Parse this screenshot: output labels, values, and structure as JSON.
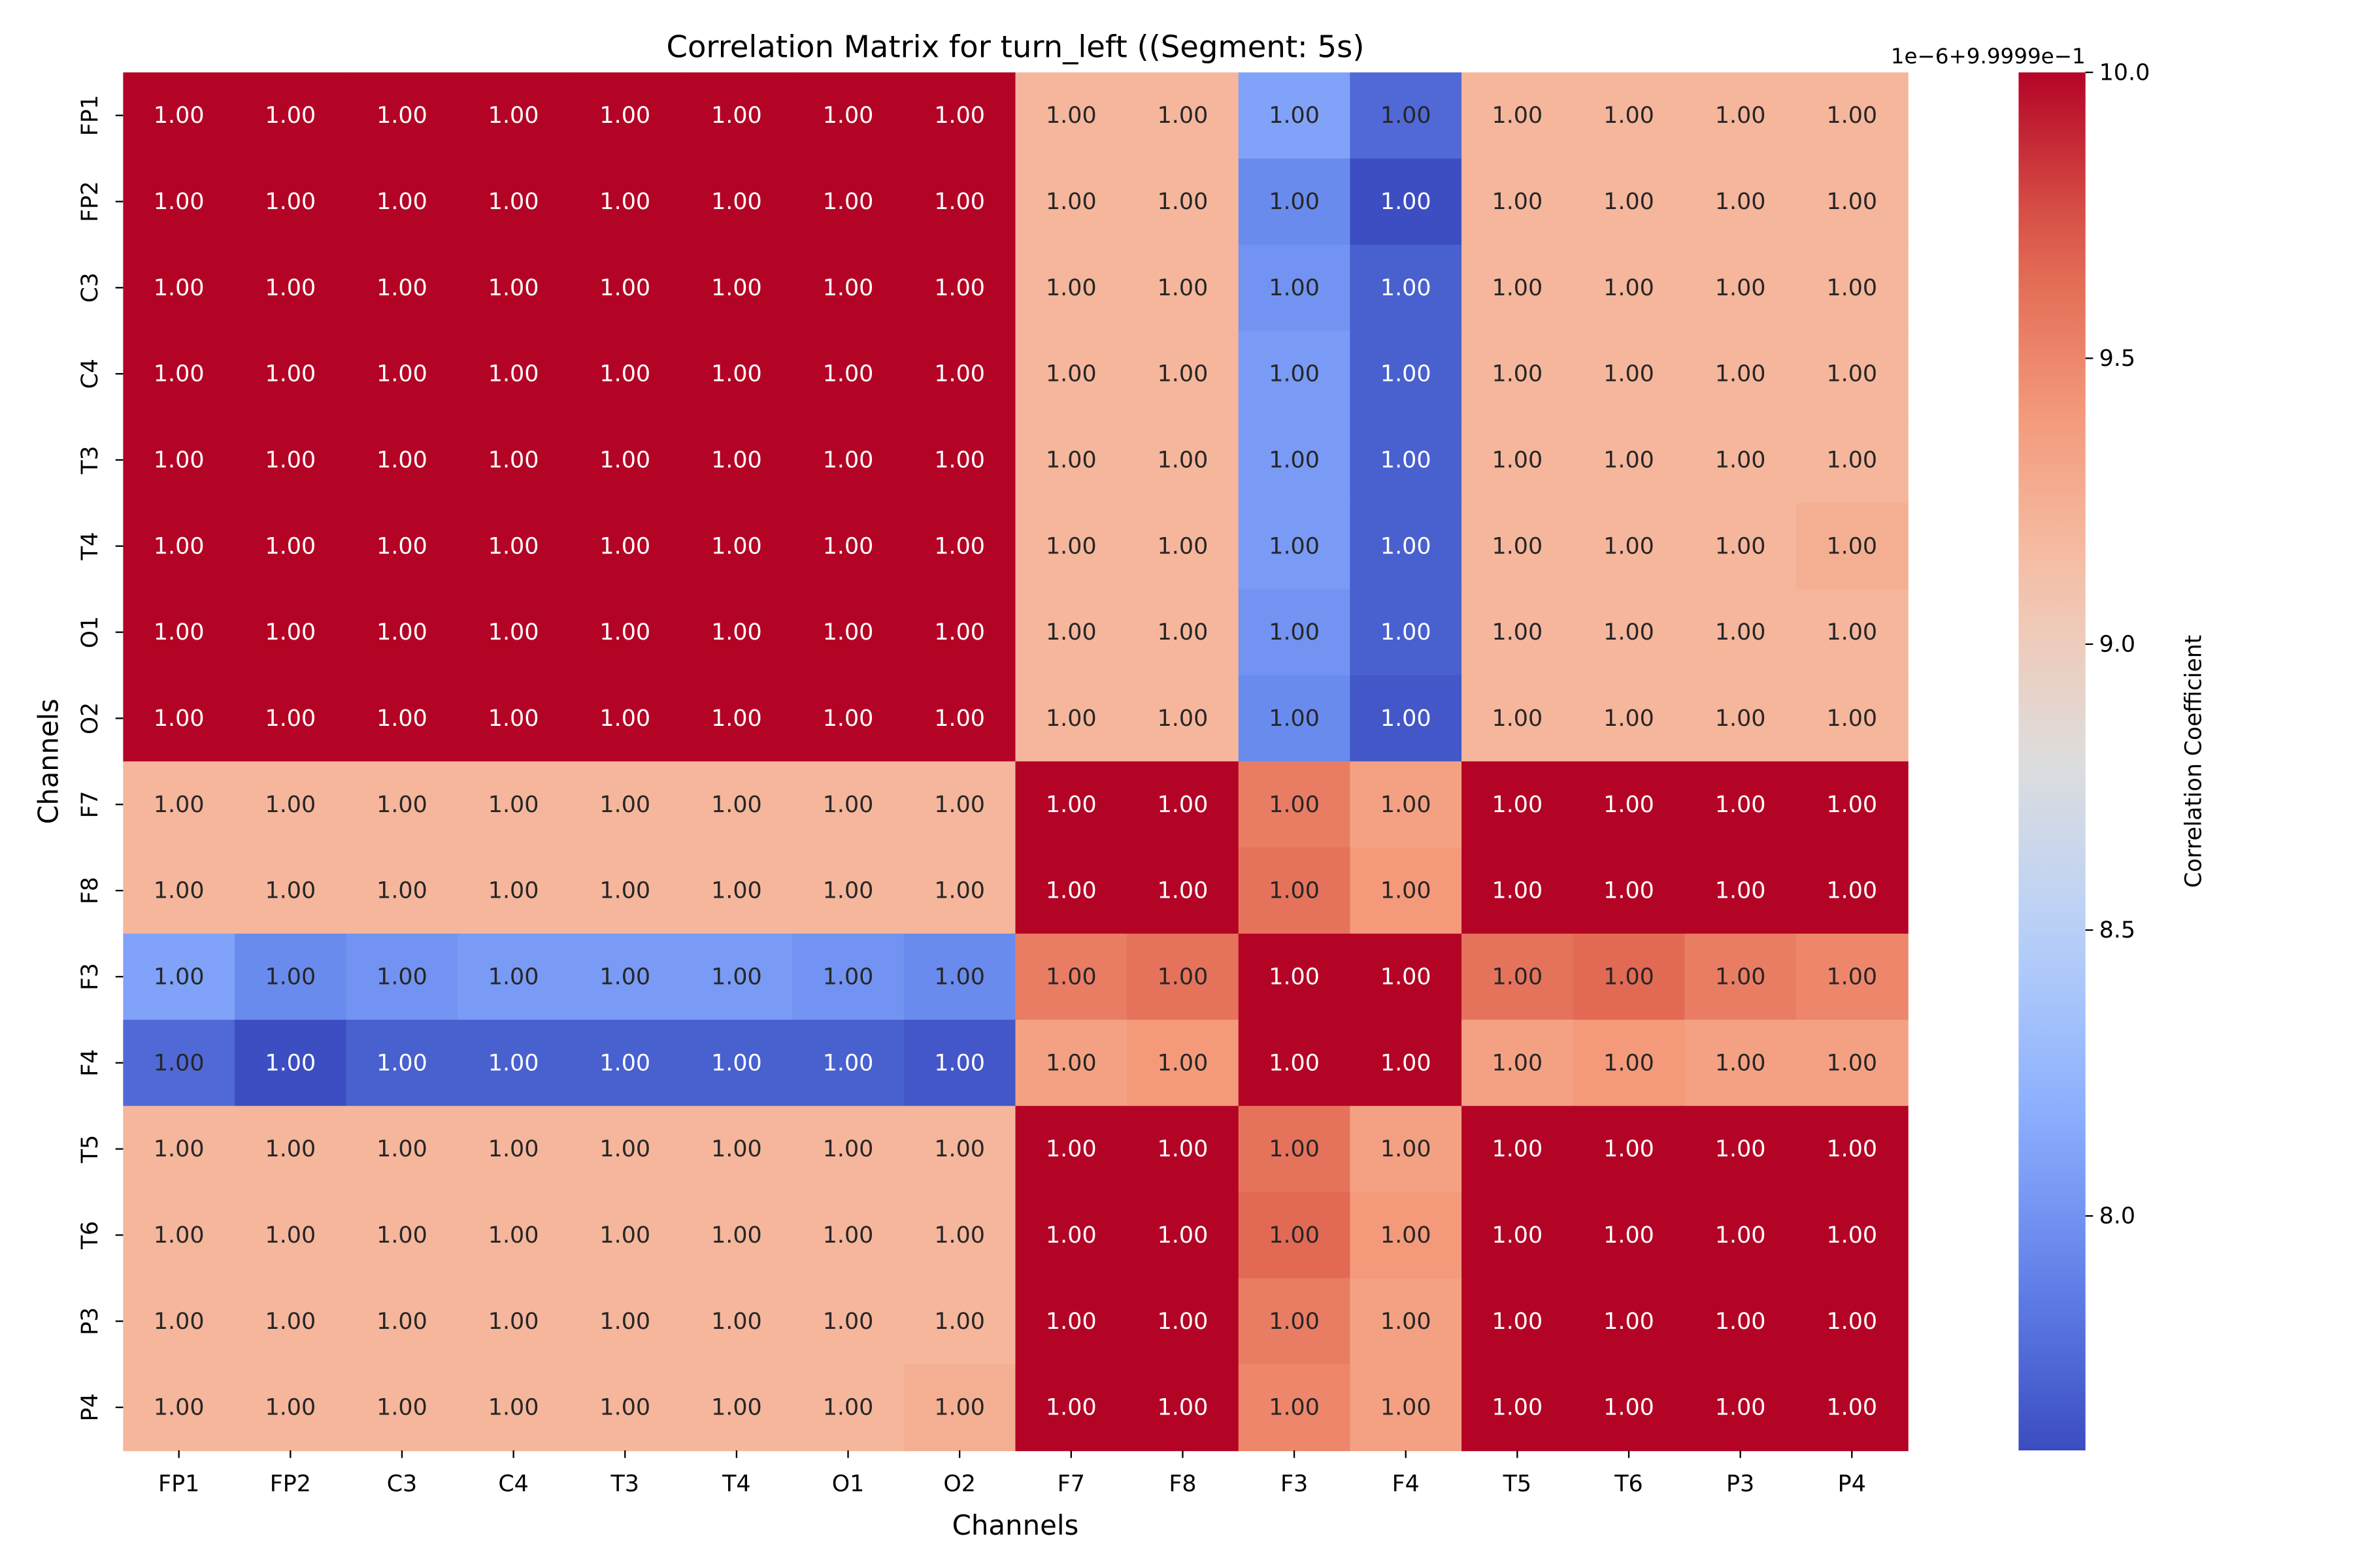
{
  "chart_data": {
    "type": "heatmap",
    "title": "Correlation Matrix for turn_left ((Segment: 5s)",
    "xlabel": "Channels",
    "ylabel": "Channels",
    "x_categories": [
      "FP1",
      "FP2",
      "C3",
      "C4",
      "T3",
      "T4",
      "O1",
      "O2",
      "F7",
      "F8",
      "F3",
      "F4",
      "T5",
      "T6",
      "P3",
      "P4"
    ],
    "y_categories": [
      "FP1",
      "FP2",
      "C3",
      "C4",
      "T3",
      "T4",
      "O1",
      "O2",
      "F7",
      "F8",
      "F3",
      "F4",
      "T5",
      "T6",
      "P3",
      "P4"
    ],
    "cell_annotation": "1.00",
    "colormap": "coolwarm",
    "colorbar": {
      "label": "Correlation Coefficient",
      "offset_text": "1e−6+9.9999e−1",
      "range": [
        7.59,
        10.0
      ],
      "ticks": [
        8.0,
        8.5,
        9.0,
        9.5,
        10.0
      ],
      "tick_labels": [
        "8.0",
        "8.5",
        "9.0",
        "9.5",
        "10.0"
      ]
    },
    "values_note_units": "colorbar units (value = 0.99999 + 1e-6 × v)",
    "values": [
      [
        10.0,
        10.0,
        10.0,
        10.0,
        10.0,
        10.0,
        10.0,
        10.0,
        9.2,
        9.2,
        8.1,
        7.75,
        9.2,
        9.2,
        9.2,
        9.2
      ],
      [
        10.0,
        10.0,
        10.0,
        10.0,
        10.0,
        10.0,
        10.0,
        10.0,
        9.2,
        9.2,
        7.95,
        7.6,
        9.2,
        9.2,
        9.2,
        9.2
      ],
      [
        10.0,
        10.0,
        10.0,
        10.0,
        10.0,
        10.0,
        10.0,
        10.0,
        9.2,
        9.2,
        8.0,
        7.7,
        9.2,
        9.2,
        9.2,
        9.2
      ],
      [
        10.0,
        10.0,
        10.0,
        10.0,
        10.0,
        10.0,
        10.0,
        10.0,
        9.2,
        9.2,
        8.05,
        7.7,
        9.2,
        9.2,
        9.2,
        9.2
      ],
      [
        10.0,
        10.0,
        10.0,
        10.0,
        10.0,
        10.0,
        10.0,
        10.0,
        9.2,
        9.2,
        8.05,
        7.7,
        9.2,
        9.2,
        9.2,
        9.2
      ],
      [
        10.0,
        10.0,
        10.0,
        10.0,
        10.0,
        10.0,
        10.0,
        10.0,
        9.2,
        9.2,
        8.05,
        7.7,
        9.2,
        9.2,
        9.2,
        9.25
      ],
      [
        10.0,
        10.0,
        10.0,
        10.0,
        10.0,
        10.0,
        10.0,
        10.0,
        9.2,
        9.2,
        8.0,
        7.7,
        9.2,
        9.2,
        9.2,
        9.2
      ],
      [
        10.0,
        10.0,
        10.0,
        10.0,
        10.0,
        10.0,
        10.0,
        10.0,
        9.2,
        9.2,
        7.95,
        7.65,
        9.2,
        9.2,
        9.2,
        9.2
      ],
      [
        9.2,
        9.2,
        9.2,
        9.2,
        9.2,
        9.2,
        9.2,
        9.2,
        10.0,
        10.0,
        9.55,
        9.35,
        10.0,
        10.0,
        10.0,
        10.0
      ],
      [
        9.2,
        9.2,
        9.2,
        9.2,
        9.2,
        9.2,
        9.2,
        9.2,
        10.0,
        10.0,
        9.6,
        9.4,
        10.0,
        10.0,
        10.0,
        10.0
      ],
      [
        8.1,
        7.95,
        8.0,
        8.05,
        8.05,
        8.05,
        8.0,
        7.95,
        9.55,
        9.6,
        10.0,
        10.0,
        9.6,
        9.65,
        9.55,
        9.5
      ],
      [
        7.75,
        7.6,
        7.7,
        7.7,
        7.7,
        7.7,
        7.7,
        7.65,
        9.35,
        9.4,
        10.0,
        10.0,
        9.35,
        9.4,
        9.35,
        9.35
      ],
      [
        9.2,
        9.2,
        9.2,
        9.2,
        9.2,
        9.2,
        9.2,
        9.2,
        10.0,
        10.0,
        9.6,
        9.35,
        10.0,
        10.0,
        10.0,
        10.0
      ],
      [
        9.2,
        9.2,
        9.2,
        9.2,
        9.2,
        9.2,
        9.2,
        9.2,
        10.0,
        10.0,
        9.65,
        9.4,
        10.0,
        10.0,
        10.0,
        10.0
      ],
      [
        9.2,
        9.2,
        9.2,
        9.2,
        9.2,
        9.2,
        9.2,
        9.2,
        10.0,
        10.0,
        9.55,
        9.35,
        10.0,
        10.0,
        10.0,
        10.0
      ],
      [
        9.2,
        9.2,
        9.2,
        9.2,
        9.2,
        9.2,
        9.2,
        9.25,
        10.0,
        10.0,
        9.5,
        9.35,
        10.0,
        10.0,
        10.0,
        10.0
      ]
    ]
  }
}
